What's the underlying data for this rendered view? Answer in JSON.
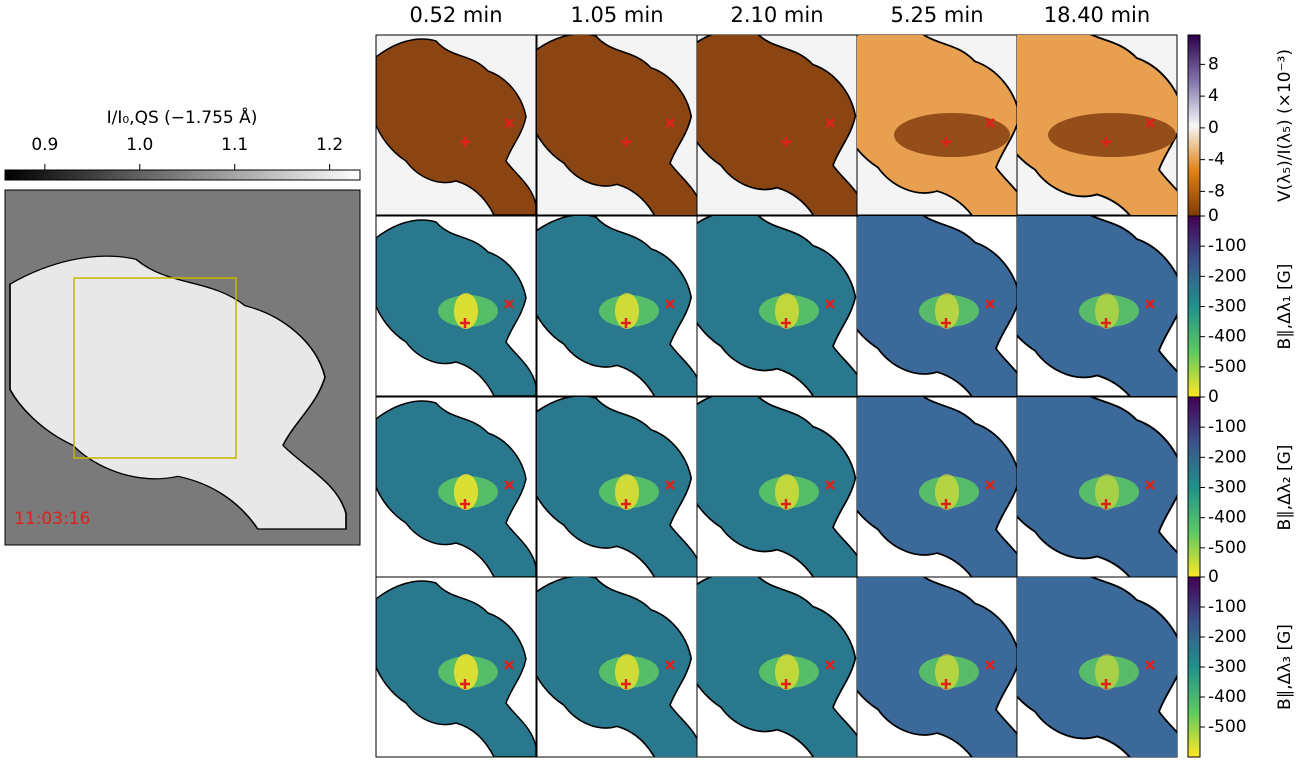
{
  "column_titles": [
    "0.52 min",
    "1.05 min",
    "2.10 min",
    "5.25 min",
    "18.40 min"
  ],
  "intensity_colorbar": {
    "label": "I/I₀,QS (−1.755 Å)",
    "lim": [
      0.858,
      1.232
    ],
    "ticks": [
      0.9,
      {
        "value": 1.0,
        "label": "1.0"
      },
      1.1,
      1.2
    ]
  },
  "timestamp": "11:03:16",
  "colorbars": [
    {
      "label": "V(λ₅)/I(λ₅) (×10⁻³)",
      "lim": [
        -11.1,
        11.7
      ],
      "ticks": [
        8,
        4,
        0,
        -4,
        -8
      ]
    },
    {
      "label": "B∥,Δλ₁ [G]",
      "lim": [
        -600,
        0
      ],
      "ticks": [
        0,
        -100,
        -200,
        -300,
        -400,
        -500
      ]
    },
    {
      "label": "B∥,Δλ₂ [G]",
      "lim": [
        -600,
        0
      ],
      "ticks": [
        0,
        -100,
        -200,
        -300,
        -400,
        -500
      ]
    },
    {
      "label": "B∥,Δλ₃ [G]",
      "lim": [
        -600,
        0
      ],
      "ticks": [
        0,
        -100,
        -200,
        -300,
        -400,
        -500
      ]
    }
  ]
}
